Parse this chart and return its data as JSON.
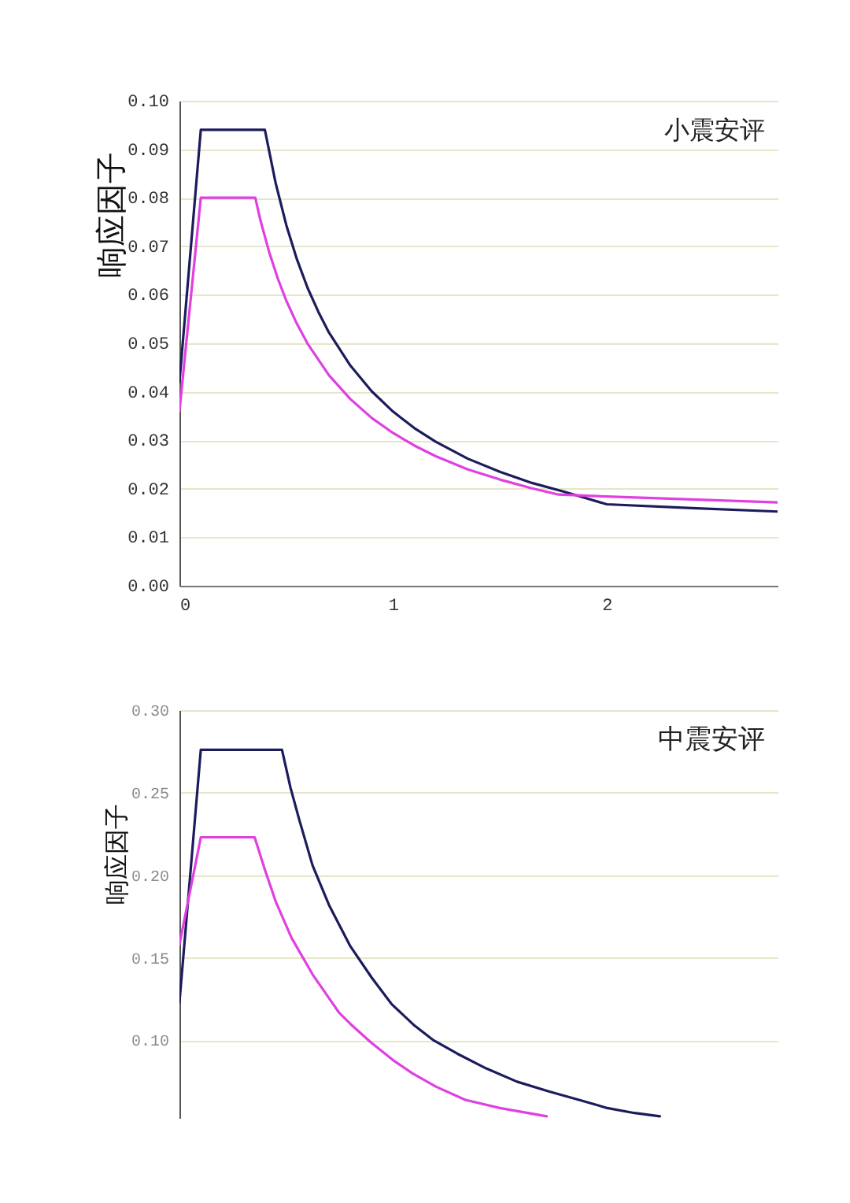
{
  "chart_data": [
    {
      "type": "line",
      "title": "小震安评",
      "ylabel": "响应因子",
      "grid": "y",
      "xlim": [
        0,
        2.8
      ],
      "xticks": [
        0,
        1,
        2
      ],
      "ylim": [
        0,
        0.1
      ],
      "yticks": [
        {
          "value": 0,
          "label": "0.00"
        },
        {
          "value": 0.01,
          "label": "0.01"
        },
        {
          "value": 0.02,
          "label": "0.02"
        },
        {
          "value": 0.03,
          "label": "0.03"
        },
        {
          "value": 0.04,
          "label": "0.04"
        },
        {
          "value": 0.05,
          "label": "0.05"
        },
        {
          "value": 0.06,
          "label": "0.06"
        },
        {
          "value": 0.07,
          "label": "0.07"
        },
        {
          "value": 0.08,
          "label": "0.08"
        },
        {
          "value": 0.09,
          "label": "0.09"
        },
        {
          "value": 0.1,
          "label": "0.10"
        }
      ],
      "series": [
        {
          "color": "#1c1c5c",
          "x": [
            0,
            0.1,
            0.4,
            0.45,
            0.5,
            0.55,
            0.6,
            0.65,
            0.7,
            0.8,
            0.9,
            1.0,
            1.1,
            1.2,
            1.35,
            1.5,
            1.65,
            1.8,
            1.9,
            2.0,
            2.4,
            2.8
          ],
          "values": [
            0.042,
            0.094,
            0.094,
            0.0831,
            0.0744,
            0.0673,
            0.0614,
            0.0565,
            0.0522,
            0.0454,
            0.0401,
            0.0359,
            0.0325,
            0.0297,
            0.0262,
            0.0235,
            0.0212,
            0.0194,
            0.0181,
            0.0168,
            0.016,
            0.0153
          ]
        },
        {
          "color": "#e040e0",
          "x": [
            0,
            0.1,
            0.355,
            0.38,
            0.42,
            0.46,
            0.5,
            0.55,
            0.6,
            0.7,
            0.8,
            0.9,
            1.0,
            1.1,
            1.2,
            1.35,
            1.5,
            1.65,
            1.775,
            2.0,
            2.4,
            2.8
          ],
          "values": [
            0.036,
            0.08,
            0.08,
            0.0752,
            0.0688,
            0.0634,
            0.0588,
            0.054,
            0.0499,
            0.0434,
            0.0385,
            0.0346,
            0.0315,
            0.0289,
            0.0267,
            0.024,
            0.0219,
            0.0201,
            0.0188,
            0.0184,
            0.0178,
            0.0172
          ]
        }
      ]
    },
    {
      "type": "line",
      "title": "中震安评",
      "ylabel": "响应因子",
      "grid": "y",
      "tick_labels": "y",
      "xlim": [
        0,
        2.8
      ],
      "ylim": [
        0.053,
        0.3
      ],
      "yticks": [
        {
          "value": 0.1,
          "label": "0.10"
        },
        {
          "value": 0.15,
          "label": "0.15"
        },
        {
          "value": 0.2,
          "label": "0.20"
        },
        {
          "value": 0.25,
          "label": "0.25"
        },
        {
          "value": 0.3,
          "label": "0.30"
        }
      ],
      "series": [
        {
          "color": "#1c1c5c",
          "x": [
            0,
            0.1,
            0.48,
            0.52,
            0.56,
            0.623,
            0.7,
            0.8,
            0.9,
            0.993,
            1.1,
            1.19,
            1.3,
            1.436,
            1.58,
            1.732,
            1.87,
            2.003,
            2.13,
            2.249
          ],
          "values": [
            0.123,
            0.276,
            0.276,
            0.253,
            0.234,
            0.206,
            0.182,
            0.157,
            0.138,
            0.122,
            0.109,
            0.1,
            0.092,
            0.083,
            0.075,
            0.069,
            0.064,
            0.059,
            0.056,
            0.054
          ]
        },
        {
          "color": "#e040e0",
          "x": [
            0,
            0.1,
            0.352,
            0.401,
            0.451,
            0.525,
            0.623,
            0.746,
            0.8,
            0.894,
            1.0,
            1.091,
            1.2,
            1.338,
            1.5,
            1.719
          ],
          "values": [
            0.158,
            0.223,
            0.223,
            0.203,
            0.184,
            0.162,
            0.14,
            0.117,
            0.11,
            0.099,
            0.088,
            0.08,
            0.072,
            0.064,
            0.059,
            0.054
          ]
        }
      ]
    }
  ]
}
